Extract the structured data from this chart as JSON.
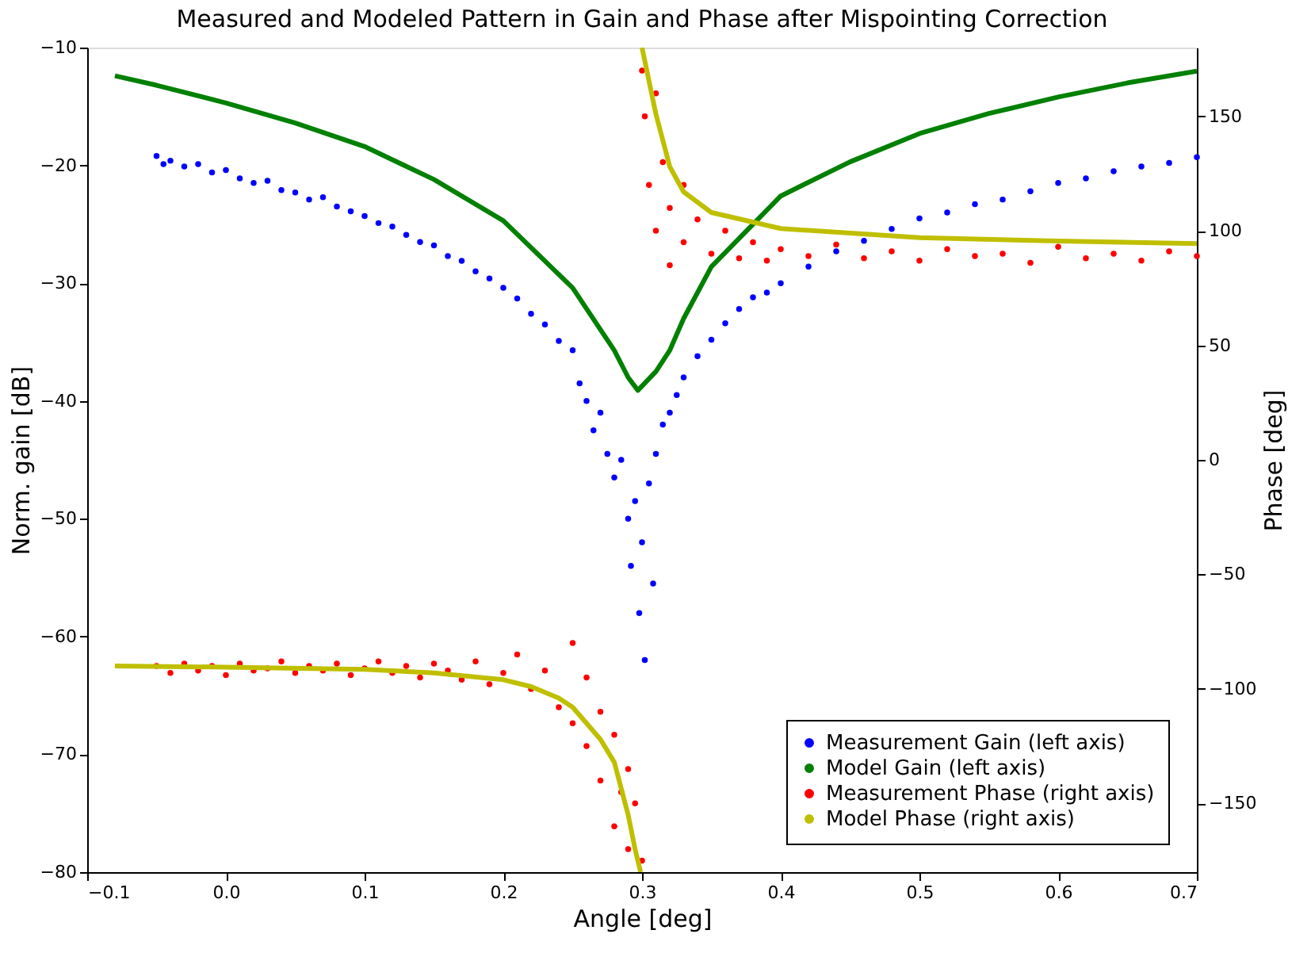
{
  "chart_data": {
    "type": "scatter",
    "title": "Measured and Modeled Pattern in Gain and Phase after Mispointing Correction",
    "xlabel": "Angle [deg]",
    "ylabel": "Norm. gain [dB]",
    "y2label": "Phase [deg]",
    "xlim": [
      -0.1,
      0.7
    ],
    "xticks": [
      {
        "value": -0.1,
        "label": "−0.1"
      },
      {
        "value": 0,
        "label": "0.0"
      },
      0.1,
      0.2,
      0.3,
      0.4,
      0.5,
      0.6,
      0.7
    ],
    "ylim": [
      -80,
      -10
    ],
    "yticks": [
      {
        "value": -80,
        "label": "−80"
      },
      {
        "value": -70,
        "label": "−70"
      },
      {
        "value": -60,
        "label": "−60"
      },
      {
        "value": -50,
        "label": "−50"
      },
      {
        "value": -40,
        "label": "−40"
      },
      {
        "value": -30,
        "label": "−30"
      },
      {
        "value": -20,
        "label": "−20"
      },
      {
        "value": -10,
        "label": "−10"
      }
    ],
    "y2lim": [
      -180,
      180
    ],
    "y2ticks": [
      {
        "value": -150,
        "label": "−150"
      },
      {
        "value": -100,
        "label": "−100"
      },
      {
        "value": -50,
        "label": "−50"
      },
      0,
      50,
      100,
      150
    ],
    "grid": false,
    "legend": "bottom right",
    "marker": "circle",
    "series": [
      {
        "name": "Measurement Gain (left axis)",
        "color": "#0000ff",
        "x": [
          -0.05,
          -0.045,
          -0.04,
          -0.03,
          -0.02,
          -0.01,
          0,
          0.01,
          0.02,
          0.03,
          0.04,
          0.05,
          0.06,
          0.07,
          0.08,
          0.09,
          0.1,
          0.11,
          0.12,
          0.13,
          0.14,
          0.15,
          0.16,
          0.17,
          0.18,
          0.19,
          0.2,
          0.21,
          0.22,
          0.23,
          0.24,
          0.25,
          0.255,
          0.26,
          0.265,
          0.27,
          0.275,
          0.28,
          0.285,
          0.29,
          0.292,
          0.295,
          0.298,
          0.3,
          0.302,
          0.305,
          0.308,
          0.31,
          0.315,
          0.32,
          0.325,
          0.33,
          0.34,
          0.35,
          0.36,
          0.37,
          0.38,
          0.39,
          0.4,
          0.42,
          0.44,
          0.46,
          0.48,
          0.5,
          0.52,
          0.54,
          0.56,
          0.58,
          0.6,
          0.62,
          0.64,
          0.66,
          0.68,
          0.7
        ],
        "values": [
          -19.2,
          -19.9,
          -19.6,
          -20.1,
          -19.9,
          -20.6,
          -20.4,
          -21.1,
          -21.5,
          -21.3,
          -22.1,
          -22.3,
          -22.9,
          -22.7,
          -23.5,
          -23.9,
          -24.3,
          -24.9,
          -25.2,
          -25.9,
          -26.5,
          -26.8,
          -27.7,
          -28.1,
          -29.0,
          -29.6,
          -30.4,
          -31.3,
          -32.6,
          -33.5,
          -34.9,
          -35.7,
          -38.5,
          -40.0,
          -42.5,
          -41.0,
          -44.5,
          -46.5,
          -45.0,
          -50.0,
          -54.0,
          -48.5,
          -58.0,
          -52.0,
          -62.0,
          -47.0,
          -55.5,
          -44.5,
          -42.0,
          -41.0,
          -39.5,
          -38.0,
          -36.2,
          -34.8,
          -33.4,
          -32.2,
          -31.2,
          -30.8,
          -30.0,
          -28.6,
          -27.3,
          -26.4,
          -25.4,
          -24.5,
          -24.0,
          -23.3,
          -22.9,
          -22.2,
          -21.5,
          -21.1,
          -20.5,
          -20.1,
          -19.8,
          -19.3
        ]
      },
      {
        "name": "Model Gain (left axis)",
        "type": "line",
        "marker": "none",
        "color": "#008000",
        "x": [
          -0.08,
          -0.05,
          0,
          0.05,
          0.1,
          0.15,
          0.2,
          0.25,
          0.28,
          0.29,
          0.297,
          0.31,
          0.32,
          0.33,
          0.35,
          0.4,
          0.45,
          0.5,
          0.55,
          0.6,
          0.65,
          0.7
        ],
        "values": [
          -12.4,
          -13.2,
          -14.7,
          -16.4,
          -18.4,
          -21.2,
          -24.7,
          -30.4,
          -35.7,
          -38.0,
          -39.1,
          -37.5,
          -35.7,
          -33.0,
          -28.6,
          -22.6,
          -19.7,
          -17.3,
          -15.6,
          -14.2,
          -13.0,
          -12.0
        ]
      },
      {
        "name": "Measurement Phase (right axis)",
        "axis": "y2",
        "color": "#ff0000",
        "x": [
          -0.05,
          -0.04,
          -0.03,
          -0.02,
          -0.01,
          0,
          0.01,
          0.02,
          0.03,
          0.04,
          0.05,
          0.06,
          0.07,
          0.08,
          0.09,
          0.1,
          0.11,
          0.12,
          0.13,
          0.14,
          0.15,
          0.16,
          0.17,
          0.18,
          0.19,
          0.2,
          0.21,
          0.22,
          0.23,
          0.24,
          0.25,
          0.25,
          0.26,
          0.26,
          0.27,
          0.27,
          0.28,
          0.28,
          0.285,
          0.29,
          0.29,
          0.295,
          0.3,
          0.3,
          0.302,
          0.305,
          0.31,
          0.31,
          0.315,
          0.32,
          0.32,
          0.33,
          0.33,
          0.34,
          0.35,
          0.36,
          0.37,
          0.38,
          0.39,
          0.4,
          0.42,
          0.44,
          0.46,
          0.48,
          0.5,
          0.52,
          0.54,
          0.56,
          0.58,
          0.6,
          0.62,
          0.64,
          0.66,
          0.68,
          0.7
        ],
        "values": [
          -90,
          -93,
          -89,
          -92,
          -90,
          -94,
          -89,
          -92,
          -91,
          -88,
          -93,
          -90,
          -92,
          -89,
          -94,
          -91,
          -88,
          -93,
          -90,
          -95,
          -89,
          -92,
          -96,
          -88,
          -98,
          -93,
          -85,
          -100,
          -92,
          -108,
          -80,
          -115,
          -95,
          -125,
          -110,
          -140,
          -120,
          -160,
          -145,
          -135,
          -170,
          -150,
          -175,
          170,
          150,
          120,
          160,
          100,
          130,
          110,
          85,
          120,
          95,
          105,
          90,
          100,
          88,
          95,
          87,
          92,
          89,
          94,
          88,
          91,
          87,
          92,
          89,
          90,
          86,
          93,
          88,
          90,
          87,
          91,
          89
        ]
      },
      {
        "name": "Model Phase (right axis)",
        "type": "line",
        "marker": "none",
        "axis": "y2",
        "color": "#bfbf00",
        "x": [
          -0.08,
          0,
          0.1,
          0.15,
          0.2,
          0.22,
          0.24,
          0.25,
          0.26,
          0.27,
          0.28,
          0.29,
          0.295,
          0.299,
          null,
          0.3,
          0.31,
          0.32,
          0.33,
          0.35,
          0.4,
          0.5,
          0.6,
          0.7
        ],
        "values": [
          -90,
          -90.5,
          -91.5,
          -93,
          -96,
          -99,
          -104,
          -108,
          -115,
          -122,
          -132,
          -155,
          -170,
          -180,
          null,
          180,
          151,
          128,
          117,
          108,
          101,
          97,
          95.5,
          94.4
        ]
      }
    ]
  }
}
